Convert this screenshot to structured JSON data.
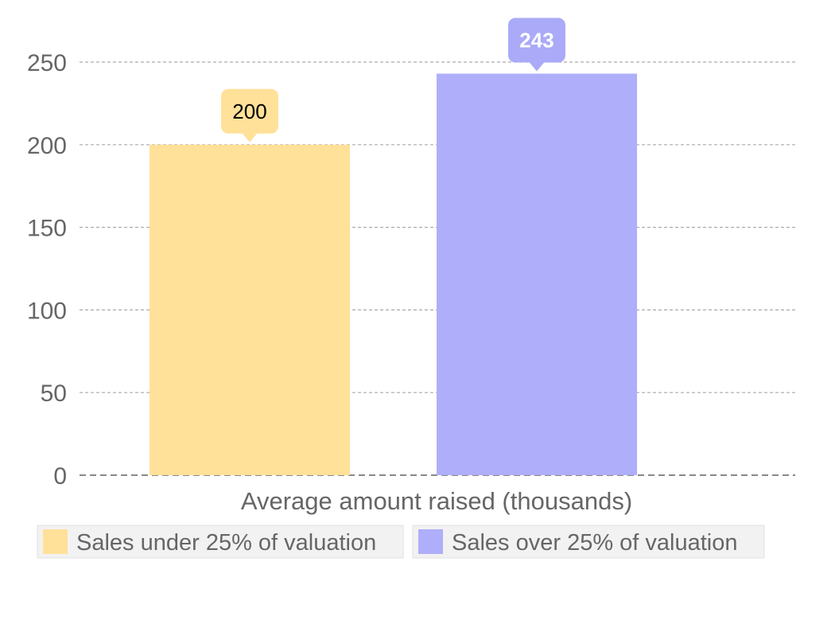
{
  "chart_data": {
    "type": "bar",
    "title": "",
    "xlabel": "Average amount raised (thousands)",
    "ylabel": "",
    "ylim": [
      0,
      250
    ],
    "y_ticks": [
      "0",
      "50",
      "100",
      "150",
      "200",
      "250"
    ],
    "grid": true,
    "legend_position": "bottom",
    "series": [
      {
        "name": "Sales under 25% of valuation",
        "value": 200,
        "label": "200",
        "color": "#FFE199",
        "label_color": "#FFE199",
        "label_text_color": "#000000"
      },
      {
        "name": "Sales over 25% of valuation",
        "value": 243,
        "label": "243",
        "color": "#AEAEFA",
        "label_color": "#AAAAF8",
        "label_text_color": "#FFFFFF"
      }
    ]
  },
  "colors": {
    "axis_text": "#666666",
    "grid": "#AAAAAA",
    "legend_background": "#F2F2F2"
  }
}
